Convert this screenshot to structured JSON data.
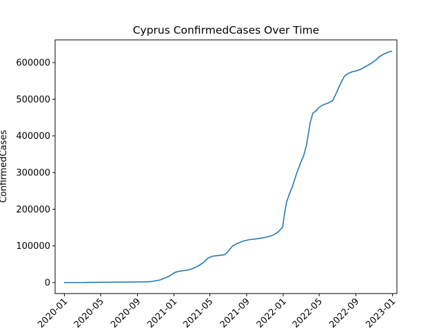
{
  "chart_data": {
    "type": "line",
    "title": "Cyprus  ConfirmedCases Over Time",
    "xlabel": "",
    "ylabel": "ConfirmedCases",
    "x_type": "date",
    "xlim": [
      "2019-12-01",
      "2023-01-16"
    ],
    "ylim": [
      -30000,
      662000
    ],
    "x_ticks": [
      "2020-01",
      "2020-05",
      "2020-09",
      "2021-01",
      "2021-05",
      "2021-09",
      "2022-01",
      "2022-05",
      "2022-09",
      "2023-01"
    ],
    "y_ticks": [
      0,
      100000,
      200000,
      300000,
      400000,
      500000,
      600000
    ],
    "y_tick_labels": [
      "0",
      "100000",
      "200000",
      "300000",
      "400000",
      "500000",
      "600000"
    ],
    "grid": false,
    "series": [
      {
        "color": "#1f77b4",
        "points": [
          [
            "2020-01-01",
            0
          ],
          [
            "2020-03-01",
            0
          ],
          [
            "2020-04-01",
            600
          ],
          [
            "2020-06-01",
            1000
          ],
          [
            "2020-08-01",
            1300
          ],
          [
            "2020-10-01",
            2000
          ],
          [
            "2020-10-20",
            3000
          ],
          [
            "2020-11-15",
            7000
          ],
          [
            "2020-12-10",
            15000
          ],
          [
            "2020-12-25",
            22000
          ],
          [
            "2021-01-05",
            28000
          ],
          [
            "2021-01-20",
            31000
          ],
          [
            "2021-02-15",
            34000
          ],
          [
            "2021-03-01",
            37000
          ],
          [
            "2021-03-25",
            46000
          ],
          [
            "2021-04-10",
            55000
          ],
          [
            "2021-04-25",
            67000
          ],
          [
            "2021-05-10",
            72000
          ],
          [
            "2021-06-01",
            74000
          ],
          [
            "2021-06-20",
            76000
          ],
          [
            "2021-07-01",
            85000
          ],
          [
            "2021-07-15",
            99000
          ],
          [
            "2021-08-01",
            107000
          ],
          [
            "2021-08-20",
            113000
          ],
          [
            "2021-09-10",
            117000
          ],
          [
            "2021-10-01",
            119000
          ],
          [
            "2021-11-01",
            123000
          ],
          [
            "2021-11-25",
            128000
          ],
          [
            "2021-12-15",
            138000
          ],
          [
            "2021-12-30",
            151000
          ],
          [
            "2022-01-05",
            185000
          ],
          [
            "2022-01-12",
            218000
          ],
          [
            "2022-01-20",
            238000
          ],
          [
            "2022-02-01",
            262000
          ],
          [
            "2022-02-15",
            298000
          ],
          [
            "2022-03-01",
            328000
          ],
          [
            "2022-03-10",
            345000
          ],
          [
            "2022-03-20",
            375000
          ],
          [
            "2022-04-01",
            435000
          ],
          [
            "2022-04-10",
            462000
          ],
          [
            "2022-04-20",
            468000
          ],
          [
            "2022-05-01",
            478000
          ],
          [
            "2022-05-15",
            485000
          ],
          [
            "2022-06-01",
            490000
          ],
          [
            "2022-06-15",
            496000
          ],
          [
            "2022-06-25",
            512000
          ],
          [
            "2022-07-05",
            531000
          ],
          [
            "2022-07-15",
            548000
          ],
          [
            "2022-07-25",
            563000
          ],
          [
            "2022-08-05",
            570000
          ],
          [
            "2022-08-20",
            575000
          ],
          [
            "2022-09-05",
            578000
          ],
          [
            "2022-09-20",
            583000
          ],
          [
            "2022-10-05",
            590000
          ],
          [
            "2022-10-20",
            597000
          ],
          [
            "2022-11-05",
            606000
          ],
          [
            "2022-11-20",
            617000
          ],
          [
            "2022-12-05",
            624000
          ],
          [
            "2022-12-20",
            629000
          ],
          [
            "2022-12-30",
            631000
          ]
        ]
      }
    ]
  }
}
